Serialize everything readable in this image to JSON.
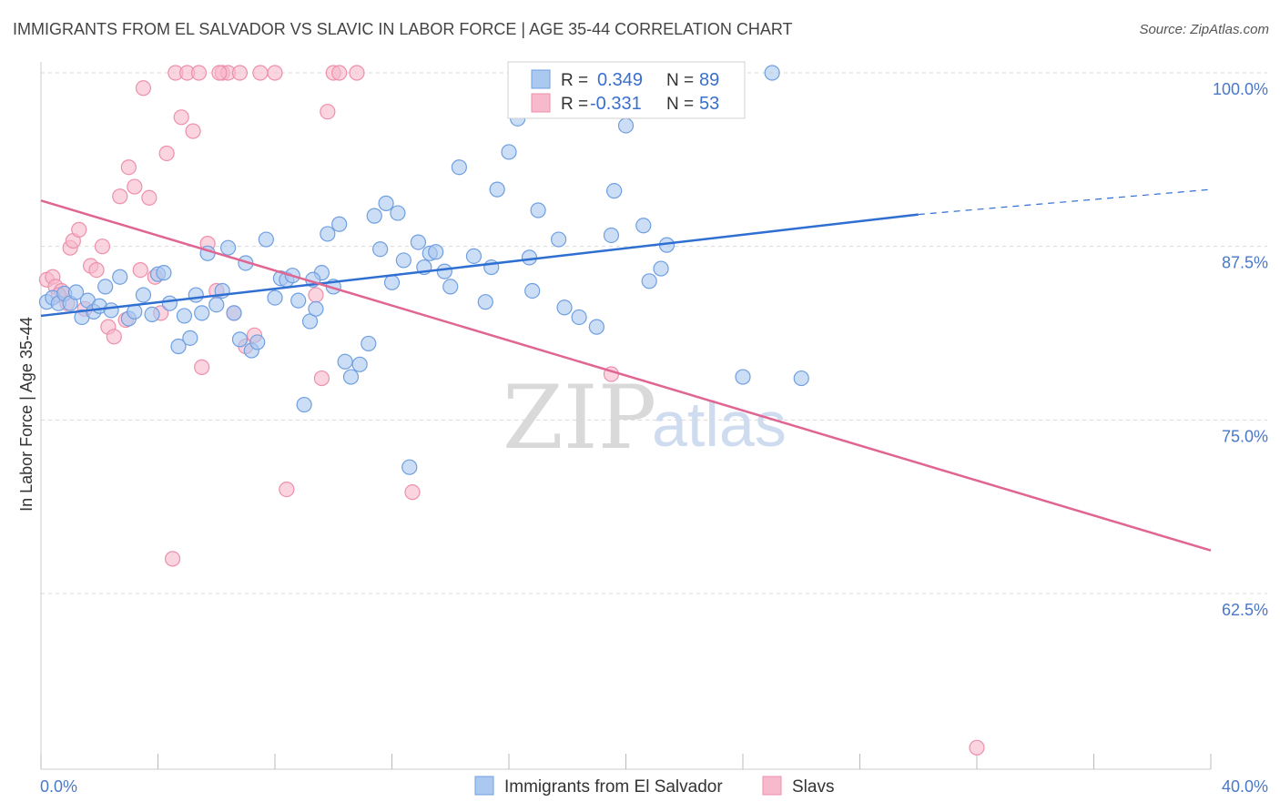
{
  "title": "IMMIGRANTS FROM EL SALVADOR VS SLAVIC IN LABOR FORCE | AGE 35-44 CORRELATION CHART",
  "source": "Source: ZipAtlas.com",
  "watermark": {
    "zip": "ZIP",
    "atlas": "atlas"
  },
  "legend_box": {
    "rows": [
      {
        "r_label": "R =",
        "r_value": "0.349",
        "n_label": "N =",
        "n_value": "89"
      },
      {
        "r_label": "R =",
        "r_value": "-0.331",
        "n_label": "N =",
        "n_value": "53"
      }
    ]
  },
  "bottom_legend": [
    {
      "label": "Immigrants from El Salvador"
    },
    {
      "label": "Slavs"
    }
  ],
  "colors": {
    "series1_fill": "#aac8f0",
    "series1_stroke": "#6f9fe0",
    "series1_line": "#2f6fd1",
    "series2_fill": "#f7b9cc",
    "series2_stroke": "#ee8fab",
    "series2_line": "#e06593",
    "grid": "#d9d9d9",
    "tick_text": "#4a78c8"
  },
  "chart_data": {
    "type": "scatter",
    "title": "IMMIGRANTS FROM EL SALVADOR VS SLAVIC IN LABOR FORCE | AGE 35-44 CORRELATION CHART",
    "xlabel": "",
    "ylabel": "In Labor Force | Age 35-44",
    "xlim": [
      0,
      40
    ],
    "ylim": [
      52,
      102.5
    ],
    "x_tick_labels": [
      "0.0%",
      "40.0%"
    ],
    "y_ticks": [
      62.5,
      75.0,
      87.5,
      100.0
    ],
    "y_tick_labels": [
      "62.5%",
      "75.0%",
      "87.5%",
      "100.0%"
    ],
    "grid": true,
    "legend_placement": "top-center",
    "series": [
      {
        "name": "Immigrants from El Salvador",
        "trend": {
          "x": [
            0,
            30
          ],
          "y": [
            82.5,
            89.8
          ],
          "dashed_extension_to_x": 40,
          "dashed_extension_y": 91.6
        },
        "points": [
          [
            0.2,
            83.5
          ],
          [
            0.4,
            83.8
          ],
          [
            0.6,
            83.4
          ],
          [
            0.8,
            84.1
          ],
          [
            1.0,
            83.4
          ],
          [
            1.2,
            84.2
          ],
          [
            1.4,
            82.4
          ],
          [
            1.6,
            83.6
          ],
          [
            1.8,
            82.8
          ],
          [
            2.0,
            83.2
          ],
          [
            2.2,
            84.6
          ],
          [
            2.4,
            82.9
          ],
          [
            2.7,
            85.3
          ],
          [
            3.0,
            82.3
          ],
          [
            3.2,
            82.8
          ],
          [
            3.5,
            84.0
          ],
          [
            3.8,
            82.6
          ],
          [
            4.0,
            85.5
          ],
          [
            4.2,
            85.6
          ],
          [
            4.4,
            83.4
          ],
          [
            4.7,
            80.3
          ],
          [
            4.9,
            82.5
          ],
          [
            5.1,
            80.9
          ],
          [
            5.3,
            84.0
          ],
          [
            5.5,
            82.7
          ],
          [
            5.7,
            87.0
          ],
          [
            6.0,
            83.3
          ],
          [
            6.2,
            84.3
          ],
          [
            6.4,
            87.4
          ],
          [
            6.6,
            82.7
          ],
          [
            6.8,
            80.8
          ],
          [
            7.0,
            86.3
          ],
          [
            7.2,
            80.0
          ],
          [
            7.4,
            80.6
          ],
          [
            7.7,
            88.0
          ],
          [
            8.0,
            83.8
          ],
          [
            8.2,
            85.2
          ],
          [
            8.4,
            85.1
          ],
          [
            8.6,
            85.4
          ],
          [
            8.8,
            83.6
          ],
          [
            9.0,
            76.1
          ],
          [
            9.2,
            82.1
          ],
          [
            9.4,
            83.0
          ],
          [
            9.6,
            85.6
          ],
          [
            9.8,
            88.4
          ],
          [
            10.0,
            84.6
          ],
          [
            10.2,
            89.1
          ],
          [
            10.4,
            79.2
          ],
          [
            10.6,
            78.1
          ],
          [
            10.9,
            79.0
          ],
          [
            11.2,
            80.5
          ],
          [
            11.4,
            89.7
          ],
          [
            11.6,
            87.3
          ],
          [
            11.8,
            90.6
          ],
          [
            12.0,
            84.9
          ],
          [
            12.2,
            89.9
          ],
          [
            12.4,
            86.5
          ],
          [
            12.6,
            71.6
          ],
          [
            12.9,
            87.8
          ],
          [
            13.1,
            86.0
          ],
          [
            13.3,
            87.0
          ],
          [
            13.5,
            87.1
          ],
          [
            13.8,
            85.7
          ],
          [
            14.0,
            84.6
          ],
          [
            14.3,
            93.2
          ],
          [
            14.8,
            86.8
          ],
          [
            15.2,
            83.5
          ],
          [
            15.4,
            86.0
          ],
          [
            15.6,
            91.6
          ],
          [
            16.0,
            94.3
          ],
          [
            16.3,
            96.7
          ],
          [
            16.7,
            86.7
          ],
          [
            16.8,
            84.3
          ],
          [
            17.0,
            90.1
          ],
          [
            17.7,
            88.0
          ],
          [
            17.9,
            83.1
          ],
          [
            18.4,
            82.4
          ],
          [
            19.0,
            81.7
          ],
          [
            19.5,
            88.3
          ],
          [
            19.6,
            91.5
          ],
          [
            20.0,
            96.2
          ],
          [
            20.6,
            89.0
          ],
          [
            20.8,
            85.0
          ],
          [
            21.2,
            85.9
          ],
          [
            21.4,
            87.6
          ],
          [
            24.0,
            78.1
          ],
          [
            25.0,
            100.0
          ],
          [
            26.0,
            78.0
          ],
          [
            9.3,
            85.1
          ]
        ]
      },
      {
        "name": "Slavs",
        "trend": {
          "x": [
            0,
            40
          ],
          "y": [
            90.8,
            65.6
          ]
        },
        "points": [
          [
            0.2,
            85.1
          ],
          [
            0.4,
            85.3
          ],
          [
            0.5,
            84.6
          ],
          [
            0.7,
            84.3
          ],
          [
            0.9,
            83.4
          ],
          [
            1.0,
            87.4
          ],
          [
            1.1,
            87.9
          ],
          [
            1.3,
            88.7
          ],
          [
            1.5,
            83.0
          ],
          [
            1.7,
            86.1
          ],
          [
            1.9,
            85.8
          ],
          [
            2.1,
            87.5
          ],
          [
            2.3,
            81.7
          ],
          [
            2.5,
            81.0
          ],
          [
            2.7,
            91.1
          ],
          [
            2.9,
            82.2
          ],
          [
            3.0,
            93.2
          ],
          [
            3.2,
            91.8
          ],
          [
            3.4,
            85.8
          ],
          [
            3.5,
            98.9
          ],
          [
            3.7,
            91.0
          ],
          [
            3.9,
            85.3
          ],
          [
            4.1,
            82.7
          ],
          [
            4.3,
            94.2
          ],
          [
            4.5,
            65.0
          ],
          [
            4.6,
            100.0
          ],
          [
            4.8,
            96.8
          ],
          [
            5.0,
            100.0
          ],
          [
            5.2,
            95.8
          ],
          [
            5.4,
            100.0
          ],
          [
            5.5,
            78.8
          ],
          [
            5.7,
            87.7
          ],
          [
            6.0,
            84.3
          ],
          [
            6.2,
            100.0
          ],
          [
            6.4,
            100.0
          ],
          [
            6.6,
            82.7
          ],
          [
            6.8,
            100.0
          ],
          [
            7.0,
            80.3
          ],
          [
            7.3,
            81.1
          ],
          [
            7.5,
            100.0
          ],
          [
            8.0,
            100.0
          ],
          [
            8.4,
            70.0
          ],
          [
            9.4,
            84.0
          ],
          [
            9.6,
            78.0
          ],
          [
            9.8,
            97.2
          ],
          [
            10.0,
            100.0
          ],
          [
            10.2,
            100.0
          ],
          [
            10.8,
            100.0
          ],
          [
            12.7,
            69.8
          ],
          [
            19.5,
            78.3
          ],
          [
            32.0,
            51.4
          ],
          [
            6.1,
            100.0
          ],
          [
            0.6,
            84.0
          ]
        ]
      }
    ]
  }
}
